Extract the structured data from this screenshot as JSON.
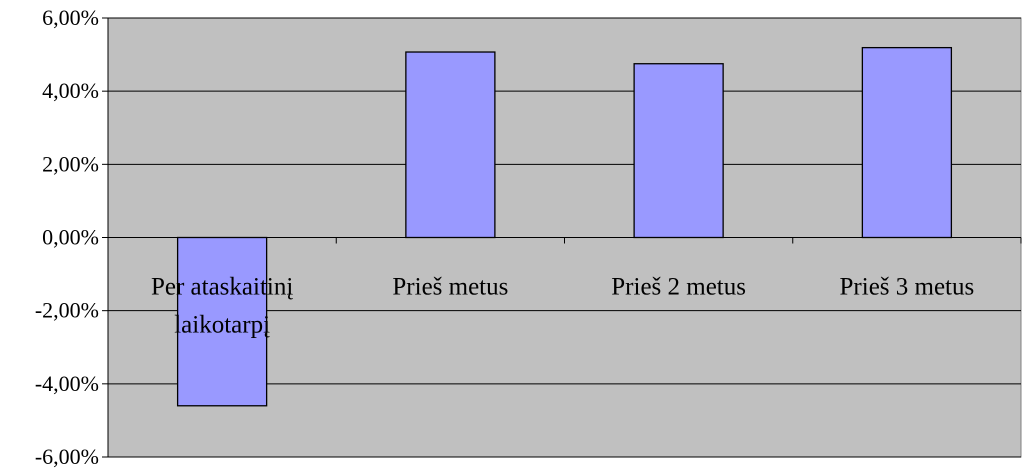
{
  "chart_data": {
    "type": "bar",
    "categories": [
      [
        "Per ataskaitinį",
        "laikotarpį"
      ],
      [
        "Prieš metus"
      ],
      [
        "Prieš  2 metus"
      ],
      [
        "Prieš 3 metus"
      ]
    ],
    "values": [
      -4.6,
      5.07,
      4.75,
      5.19
    ],
    "ylim": [
      -6,
      6
    ],
    "yticks": [
      6,
      4,
      2,
      0,
      -2,
      -4,
      -6
    ],
    "ytick_labels": [
      "6,00%",
      "4,00%",
      "2,00%",
      "0,00%",
      "-2,00%",
      "-4,00%",
      "-6,00%"
    ],
    "title": "",
    "xlabel": "",
    "ylabel": "",
    "grid": true,
    "legend": "none",
    "colors": {
      "plot_background": "#c0c0c0",
      "bar_fill": "#9999ff",
      "bar_stroke": "#000000",
      "gridline": "#000000"
    }
  }
}
